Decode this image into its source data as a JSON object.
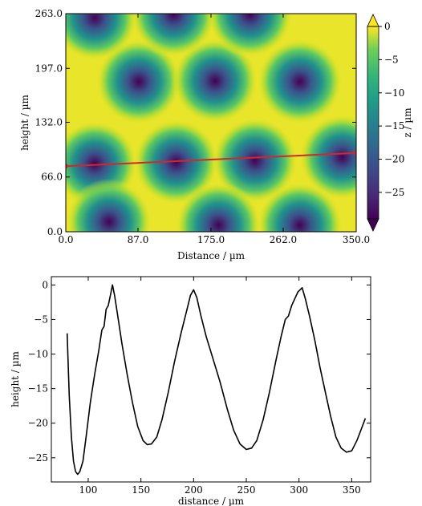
{
  "chart_data": [
    {
      "type": "heatmap",
      "title": "",
      "xlabel": "Distance / µm",
      "ylabel": "height / µm",
      "xlim": [
        0,
        350
      ],
      "ylim": [
        0,
        263
      ],
      "xticks": [
        {
          "value": 0,
          "label": "0.0"
        },
        {
          "value": 87,
          "label": "87.0"
        },
        {
          "value": 175,
          "label": "175.0"
        },
        {
          "value": 262,
          "label": "262.0"
        },
        {
          "value": 350,
          "label": "350.0"
        }
      ],
      "yticks": [
        {
          "value": 0,
          "label": "0.0"
        },
        {
          "value": 66,
          "label": "66.0"
        },
        {
          "value": 132,
          "label": "132.0"
        },
        {
          "value": 197,
          "label": "197.0"
        },
        {
          "value": 263,
          "label": "263.0"
        }
      ],
      "colormap": "viridis",
      "colorbar": {
        "label": "z / µm",
        "range": [
          -29,
          0
        ],
        "ticks": [
          {
            "value": 0,
            "label": "0"
          },
          {
            "value": -5,
            "label": "−5"
          },
          {
            "value": -10,
            "label": "−10"
          },
          {
            "value": -15,
            "label": "−15"
          },
          {
            "value": -20,
            "label": "−20"
          },
          {
            "value": -25,
            "label": "−25"
          }
        ]
      },
      "pits": [
        {
          "x": 35,
          "y": 82
        },
        {
          "x": 133,
          "y": 84
        },
        {
          "x": 228,
          "y": 86
        },
        {
          "x": 333,
          "y": 90
        },
        {
          "x": 88,
          "y": 181
        },
        {
          "x": 180,
          "y": 182
        },
        {
          "x": 282,
          "y": 181
        },
        {
          "x": 184,
          "y": 8
        },
        {
          "x": 282,
          "y": 8
        },
        {
          "x": 52,
          "y": 12
        },
        {
          "x": 130,
          "y": 262
        },
        {
          "x": 222,
          "y": 262
        },
        {
          "x": 35,
          "y": 258
        }
      ],
      "profile_line": {
        "color": "#d62728",
        "start": [
          0,
          79
        ],
        "end": [
          350,
          95
        ]
      }
    },
    {
      "type": "line",
      "title": "",
      "xlabel": "distance / µm",
      "ylabel": "height / µm",
      "xlim": [
        65,
        368
      ],
      "ylim": [
        -28.5,
        1.2
      ],
      "xticks": [
        {
          "value": 100,
          "label": "100"
        },
        {
          "value": 150,
          "label": "150"
        },
        {
          "value": 200,
          "label": "200"
        },
        {
          "value": 250,
          "label": "250"
        },
        {
          "value": 300,
          "label": "300"
        },
        {
          "value": 350,
          "label": "350"
        }
      ],
      "yticks": [
        {
          "value": 0,
          "label": "0"
        },
        {
          "value": -5,
          "label": "−5"
        },
        {
          "value": -10,
          "label": "−10"
        },
        {
          "value": -15,
          "label": "−15"
        },
        {
          "value": -20,
          "label": "−20"
        },
        {
          "value": -25,
          "label": "−25"
        }
      ],
      "series": [
        {
          "color": "#000000",
          "points": [
            [
              80,
              -7
            ],
            [
              82,
              -16
            ],
            [
              84,
              -22
            ],
            [
              86,
              -25.5
            ],
            [
              88,
              -27
            ],
            [
              90,
              -27.4
            ],
            [
              92,
              -27
            ],
            [
              95,
              -25.5
            ],
            [
              98,
              -22
            ],
            [
              102,
              -17
            ],
            [
              106,
              -13
            ],
            [
              110,
              -9.5
            ],
            [
              113,
              -6.5
            ],
            [
              115,
              -6
            ],
            [
              117,
              -3.5
            ],
            [
              119,
              -3
            ],
            [
              121,
              -1.5
            ],
            [
              123,
              0
            ],
            [
              125,
              -1.5
            ],
            [
              128,
              -4.5
            ],
            [
              132,
              -8.5
            ],
            [
              137,
              -13
            ],
            [
              142,
              -17
            ],
            [
              147,
              -20.5
            ],
            [
              152,
              -22.5
            ],
            [
              156,
              -23.1
            ],
            [
              160,
              -23
            ],
            [
              165,
              -22
            ],
            [
              170,
              -19.5
            ],
            [
              176,
              -15.5
            ],
            [
              182,
              -11
            ],
            [
              188,
              -7
            ],
            [
              193,
              -4
            ],
            [
              197,
              -1.5
            ],
            [
              200,
              -0.7
            ],
            [
              203,
              -1.8
            ],
            [
              207,
              -4.5
            ],
            [
              212,
              -7.5
            ],
            [
              218,
              -10.5
            ],
            [
              225,
              -14
            ],
            [
              232,
              -18
            ],
            [
              238,
              -21
            ],
            [
              244,
              -23
            ],
            [
              250,
              -23.8
            ],
            [
              255,
              -23.6
            ],
            [
              260,
              -22.5
            ],
            [
              266,
              -19.5
            ],
            [
              272,
              -15.5
            ],
            [
              278,
              -11
            ],
            [
              283,
              -7.5
            ],
            [
              287,
              -5
            ],
            [
              290,
              -4.5
            ],
            [
              293,
              -3
            ],
            [
              296,
              -2
            ],
            [
              299,
              -1
            ],
            [
              301,
              -0.7
            ],
            [
              303,
              -0.4
            ],
            [
              306,
              -2
            ],
            [
              310,
              -4.5
            ],
            [
              315,
              -8
            ],
            [
              320,
              -12
            ],
            [
              325,
              -15.5
            ],
            [
              330,
              -19
            ],
            [
              335,
              -22
            ],
            [
              340,
              -23.6
            ],
            [
              345,
              -24.2
            ],
            [
              350,
              -24
            ],
            [
              355,
              -22.5
            ],
            [
              360,
              -20.5
            ],
            [
              363,
              -19.3
            ]
          ]
        }
      ]
    }
  ]
}
